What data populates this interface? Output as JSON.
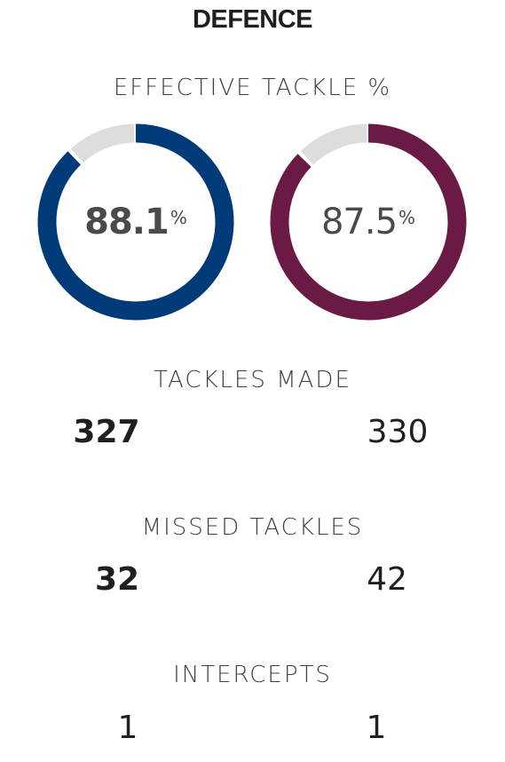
{
  "section": {
    "title": "DEFENCE"
  },
  "effective_tackle": {
    "label": "EFFECTIVE TACKLE %",
    "home": {
      "value": "88.1",
      "unit": "%",
      "percent": 88.1,
      "color": "#003A78"
    },
    "away": {
      "value": "87.5",
      "unit": "%",
      "percent": 87.5,
      "color": "#6B1A45"
    },
    "track_color": "#DDDDDD"
  },
  "tackles_made": {
    "label": "TACKLES MADE",
    "home": "327",
    "away": "330"
  },
  "missed_tackles": {
    "label": "MISSED TACKLES",
    "home": "32",
    "away": "42"
  },
  "intercepts": {
    "label": "INTERCEPTS",
    "home": "1",
    "away": "1"
  }
}
